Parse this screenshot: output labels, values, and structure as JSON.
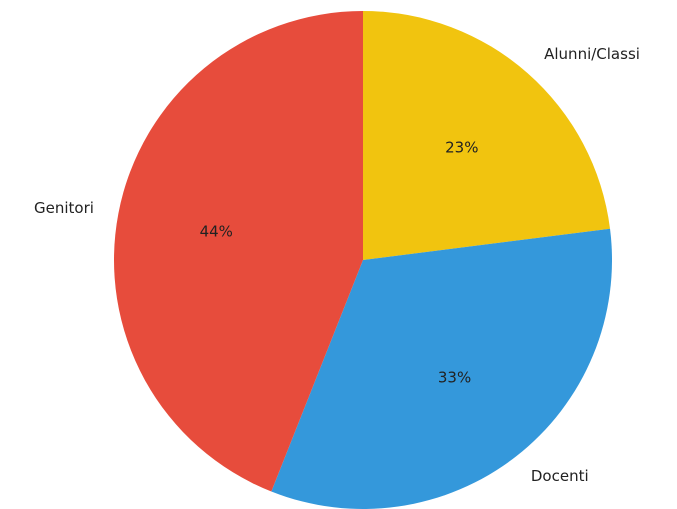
{
  "chart_data": {
    "type": "pie",
    "title": "",
    "start_angle_deg": 90,
    "direction": "clockwise",
    "slices": [
      {
        "label": "Alunni/Classi",
        "value": 23,
        "pct_label": "23%",
        "color": "#f1c40f"
      },
      {
        "label": "Docenti",
        "value": 33,
        "pct_label": "33%",
        "color": "#3498db"
      },
      {
        "label": "Genitori",
        "value": 44,
        "pct_label": "44%",
        "color": "#e74c3c"
      }
    ]
  }
}
